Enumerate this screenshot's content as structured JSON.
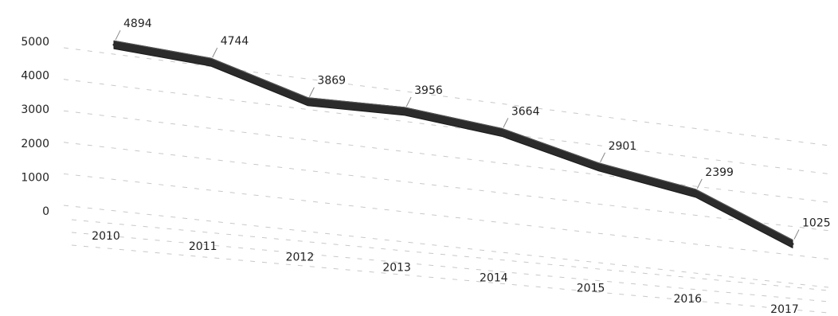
{
  "chart_data": {
    "type": "line",
    "style": "3d-ribbon",
    "categories": [
      "2010",
      "2011",
      "2012",
      "2013",
      "2014",
      "2015",
      "2016",
      "2017"
    ],
    "series": [
      {
        "values": [
          4894,
          4744,
          3869,
          3956,
          3664,
          2901,
          2399,
          1025
        ],
        "color": "#2b2b2b"
      }
    ],
    "y_ticks": [
      "5000",
      "4000",
      "3000",
      "2000",
      "1000",
      "0"
    ],
    "ylim": [
      0,
      5000
    ],
    "grid": true,
    "legend": "none",
    "title": "",
    "xlabel": "",
    "ylabel": ""
  }
}
